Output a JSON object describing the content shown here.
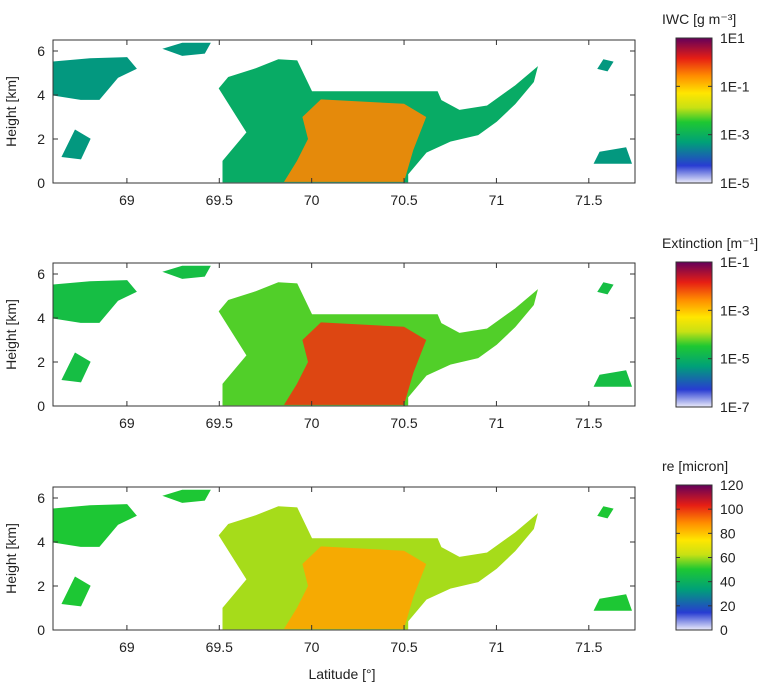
{
  "figure": {
    "xlabel": "Latitude [°]",
    "ylabel": "Height [km]"
  },
  "chart_data": [
    {
      "type": "heatmap",
      "title": "",
      "xlabel": "",
      "ylabel": "Height [km]",
      "xlim": [
        68.6,
        71.75
      ],
      "ylim": [
        0,
        6.5
      ],
      "xticks": [
        "69",
        "69.5",
        "70",
        "70.5",
        "71",
        "71.5"
      ],
      "yticks": [
        "0",
        "2",
        "4",
        "6"
      ],
      "colorbar": {
        "label": "IWC [g m⁻³]",
        "scale": "log",
        "ticks": [
          "1E1",
          "1E-1",
          "1E-3",
          "1E-5"
        ],
        "tick_values": [
          10,
          0.1,
          0.001,
          1e-05
        ]
      },
      "field": "IWC",
      "field_range": [
        1e-05,
        10
      ],
      "core_value": 0.3,
      "edge_value": 0.0008,
      "fringe_value": 0.0004
    },
    {
      "type": "heatmap",
      "title": "",
      "xlabel": "",
      "ylabel": "Height [km]",
      "xlim": [
        68.6,
        71.75
      ],
      "ylim": [
        0,
        6.5
      ],
      "xticks": [
        "69",
        "69.5",
        "70",
        "70.5",
        "71",
        "71.5"
      ],
      "yticks": [
        "0",
        "2",
        "4",
        "6"
      ],
      "colorbar": {
        "label": "Extinction [m⁻¹]",
        "scale": "log",
        "ticks": [
          "1E-1",
          "1E-3",
          "1E-5",
          "1E-7"
        ],
        "tick_values": [
          0.1,
          0.001,
          1e-05,
          1e-07
        ]
      },
      "field": "Extinction",
      "field_range": [
        1e-07,
        0.1
      ],
      "core_value": 0.01,
      "edge_value": 5e-05,
      "fringe_value": 2e-05
    },
    {
      "type": "heatmap",
      "title": "",
      "xlabel": "Latitude [°]",
      "ylabel": "Height [km]",
      "xlim": [
        68.6,
        71.75
      ],
      "ylim": [
        0,
        6.5
      ],
      "xticks": [
        "69",
        "69.5",
        "70",
        "70.5",
        "71",
        "71.5"
      ],
      "yticks": [
        "0",
        "2",
        "4",
        "6"
      ],
      "colorbar": {
        "label": "re [micron]",
        "scale": "linear",
        "ticks": [
          "120",
          "100",
          "80",
          "60",
          "40",
          "20",
          "0"
        ],
        "tick_values": [
          120,
          100,
          80,
          60,
          40,
          20,
          0
        ]
      },
      "field": "re",
      "field_range": [
        0,
        120
      ],
      "core_value": 85,
      "edge_value": 60,
      "fringe_value": 50
    }
  ],
  "cloud_regions": [
    {
      "name": "main-cloud-body",
      "polygon": [
        [
          69.52,
          0.05
        ],
        [
          69.52,
          1.0
        ],
        [
          69.65,
          2.3
        ],
        [
          69.5,
          4.3
        ],
        [
          69.55,
          4.8
        ],
        [
          69.7,
          5.2
        ],
        [
          69.82,
          5.6
        ],
        [
          69.92,
          5.55
        ],
        [
          70.0,
          4.15
        ],
        [
          70.68,
          4.15
        ],
        [
          70.7,
          3.75
        ],
        [
          70.8,
          3.3
        ],
        [
          70.95,
          3.5
        ],
        [
          71.1,
          4.4
        ],
        [
          71.22,
          5.25
        ],
        [
          71.2,
          4.6
        ],
        [
          71.1,
          3.6
        ],
        [
          71.0,
          2.8
        ],
        [
          70.9,
          2.2
        ],
        [
          70.75,
          1.9
        ],
        [
          70.62,
          1.4
        ],
        [
          70.52,
          0.4
        ],
        [
          70.52,
          0.05
        ]
      ],
      "core": [
        [
          69.85,
          0.05
        ],
        [
          69.92,
          1.0
        ],
        [
          69.98,
          2.0
        ],
        [
          69.95,
          3.0
        ],
        [
          70.05,
          3.8
        ],
        [
          70.5,
          3.6
        ],
        [
          70.62,
          3.0
        ],
        [
          70.55,
          1.5
        ],
        [
          70.5,
          0.05
        ]
      ]
    },
    {
      "name": "upper-left-cloud",
      "polygon": [
        [
          68.6,
          5.5
        ],
        [
          68.8,
          5.65
        ],
        [
          69.0,
          5.7
        ],
        [
          69.05,
          5.2
        ],
        [
          68.95,
          4.8
        ],
        [
          68.85,
          3.8
        ],
        [
          68.75,
          3.8
        ],
        [
          68.6,
          4.0
        ]
      ]
    },
    {
      "name": "top-patch",
      "polygon": [
        [
          69.2,
          6.1
        ],
        [
          69.3,
          6.35
        ],
        [
          69.45,
          6.35
        ],
        [
          69.42,
          5.9
        ],
        [
          69.3,
          5.8
        ]
      ]
    },
    {
      "name": "left-low-patch",
      "polygon": [
        [
          68.65,
          1.2
        ],
        [
          68.72,
          2.4
        ],
        [
          68.8,
          2.0
        ],
        [
          68.75,
          1.1
        ]
      ]
    },
    {
      "name": "right-low-patch",
      "polygon": [
        [
          71.53,
          0.9
        ],
        [
          71.56,
          1.4
        ],
        [
          71.7,
          1.6
        ],
        [
          71.73,
          0.9
        ]
      ]
    },
    {
      "name": "right-high-patch",
      "polygon": [
        [
          71.55,
          5.2
        ],
        [
          71.58,
          5.6
        ],
        [
          71.63,
          5.5
        ],
        [
          71.6,
          5.1
        ]
      ]
    }
  ]
}
